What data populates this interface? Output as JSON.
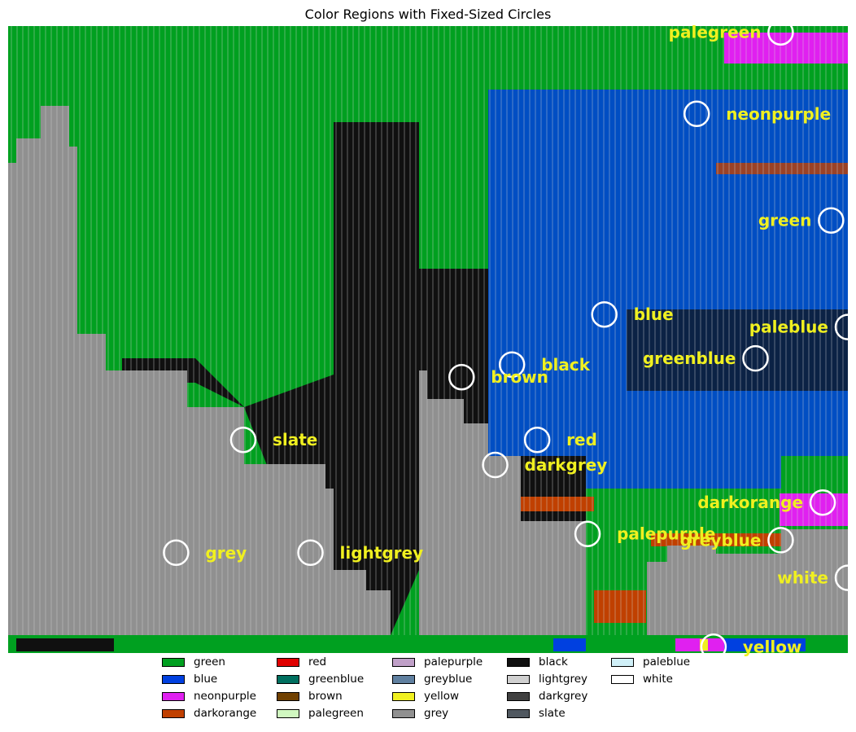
{
  "chart_data": {
    "type": "heatmap",
    "title": "Color Regions with Fixed-Sized Circles",
    "xlabel": "",
    "ylabel": "",
    "grid": false,
    "legend_position": "bottom-center",
    "legend": [
      {
        "name": "green",
        "color": "#00a020"
      },
      {
        "name": "blue",
        "color": "#0040e0"
      },
      {
        "name": "neonpurple",
        "color": "#e020f0"
      },
      {
        "name": "darkorange",
        "color": "#c04000"
      },
      {
        "name": "red",
        "color": "#e00000"
      },
      {
        "name": "greenblue",
        "color": "#007060"
      },
      {
        "name": "brown",
        "color": "#704000"
      },
      {
        "name": "palegreen",
        "color": "#d0f8c0"
      },
      {
        "name": "palepurple",
        "color": "#c0a0c8"
      },
      {
        "name": "greyblue",
        "color": "#6080a0"
      },
      {
        "name": "yellow",
        "color": "#f0f020"
      },
      {
        "name": "grey",
        "color": "#909090"
      },
      {
        "name": "black",
        "color": "#101010"
      },
      {
        "name": "lightgrey",
        "color": "#d0d0d0"
      },
      {
        "name": "darkgrey",
        "color": "#404040"
      },
      {
        "name": "slate",
        "color": "#505860"
      },
      {
        "name": "paleblue",
        "color": "#d0f0f8"
      },
      {
        "name": "white",
        "color": "#ffffff"
      }
    ],
    "annotations": [
      {
        "label": "palegreen",
        "x": 0.92,
        "y": 0.99
      },
      {
        "label": "neonpurple",
        "x": 0.82,
        "y": 0.86
      },
      {
        "label": "green",
        "x": 0.98,
        "y": 0.69
      },
      {
        "label": "blue",
        "x": 0.71,
        "y": 0.54
      },
      {
        "label": "paleblue",
        "x": 1.0,
        "y": 0.52
      },
      {
        "label": "greenblue",
        "x": 0.89,
        "y": 0.47
      },
      {
        "label": "black",
        "x": 0.6,
        "y": 0.46
      },
      {
        "label": "brown",
        "x": 0.54,
        "y": 0.44
      },
      {
        "label": "slate",
        "x": 0.28,
        "y": 0.34
      },
      {
        "label": "red",
        "x": 0.63,
        "y": 0.34
      },
      {
        "label": "darkgrey",
        "x": 0.58,
        "y": 0.3
      },
      {
        "label": "darkorange",
        "x": 0.97,
        "y": 0.24
      },
      {
        "label": "palepurple",
        "x": 0.69,
        "y": 0.19
      },
      {
        "label": "greyblue",
        "x": 0.92,
        "y": 0.18
      },
      {
        "label": "grey",
        "x": 0.2,
        "y": 0.16
      },
      {
        "label": "lightgrey",
        "x": 0.36,
        "y": 0.16
      },
      {
        "label": "white",
        "x": 1.0,
        "y": 0.12
      },
      {
        "label": "yellow",
        "x": 0.84,
        "y": 0.01
      }
    ],
    "label_color": "#f0f020",
    "circle_color": "#ffffff"
  }
}
